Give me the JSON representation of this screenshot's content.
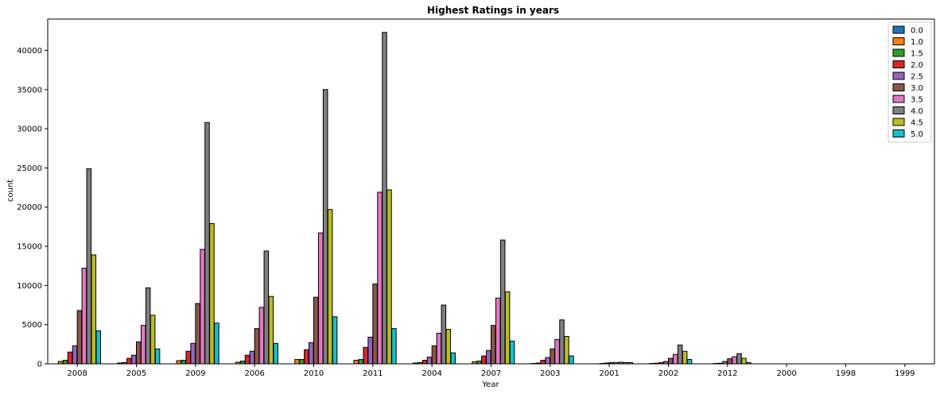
{
  "chart_data": {
    "type": "bar",
    "title": "Highest Ratings in years",
    "xlabel": "Year",
    "ylabel": "count",
    "ylim": [
      0,
      44000
    ],
    "yticks": [
      0,
      5000,
      10000,
      15000,
      20000,
      25000,
      30000,
      35000,
      40000
    ],
    "categories": [
      "2008",
      "2005",
      "2009",
      "2006",
      "2010",
      "2011",
      "2004",
      "2007",
      "2003",
      "2001",
      "2002",
      "2012",
      "2000",
      "1998",
      "1999"
    ],
    "legend_position": "top-right",
    "grid": false,
    "series": [
      {
        "name": "0.0",
        "color": "#1f77b4",
        "values": [
          0,
          0,
          0,
          0,
          0,
          0,
          0,
          0,
          0,
          0,
          0,
          0,
          0,
          0,
          0
        ]
      },
      {
        "name": "1.0",
        "color": "#ff7f0e",
        "values": [
          300,
          100,
          400,
          200,
          550,
          450,
          100,
          250,
          50,
          0,
          50,
          0,
          0,
          0,
          0
        ]
      },
      {
        "name": "1.5",
        "color": "#2ca02c",
        "values": [
          450,
          150,
          450,
          350,
          550,
          550,
          150,
          350,
          100,
          0,
          80,
          50,
          0,
          0,
          0
        ]
      },
      {
        "name": "2.0",
        "color": "#d62728",
        "values": [
          1500,
          700,
          1600,
          1100,
          1800,
          2100,
          450,
          1000,
          450,
          50,
          150,
          80,
          0,
          0,
          0
        ]
      },
      {
        "name": "2.5",
        "color": "#9467bd",
        "values": [
          2300,
          1100,
          2600,
          1600,
          2700,
          3400,
          850,
          1700,
          800,
          100,
          300,
          300,
          0,
          0,
          0
        ]
      },
      {
        "name": "3.0",
        "color": "#8c564b",
        "values": [
          6800,
          2800,
          7700,
          4500,
          8500,
          10200,
          2300,
          4900,
          1900,
          150,
          700,
          650,
          0,
          0,
          0
        ]
      },
      {
        "name": "3.5",
        "color": "#e377c2",
        "values": [
          12200,
          4900,
          14600,
          7200,
          16700,
          21900,
          3900,
          8400,
          3100,
          150,
          1200,
          900,
          0,
          0,
          0
        ]
      },
      {
        "name": "4.0",
        "color": "#7f7f7f",
        "values": [
          24900,
          9700,
          30800,
          14400,
          35000,
          42300,
          7500,
          15800,
          5600,
          200,
          2400,
          1300,
          0,
          0,
          0
        ]
      },
      {
        "name": "4.5",
        "color": "#bcbd22",
        "values": [
          13900,
          6200,
          17900,
          8600,
          19700,
          22200,
          4400,
          9200,
          3500,
          150,
          1600,
          700,
          0,
          0,
          0
        ]
      },
      {
        "name": "5.0",
        "color": "#17becf",
        "values": [
          4200,
          1900,
          5200,
          2600,
          6000,
          4500,
          1400,
          2900,
          1000,
          150,
          550,
          150,
          0,
          0,
          0
        ]
      }
    ]
  }
}
